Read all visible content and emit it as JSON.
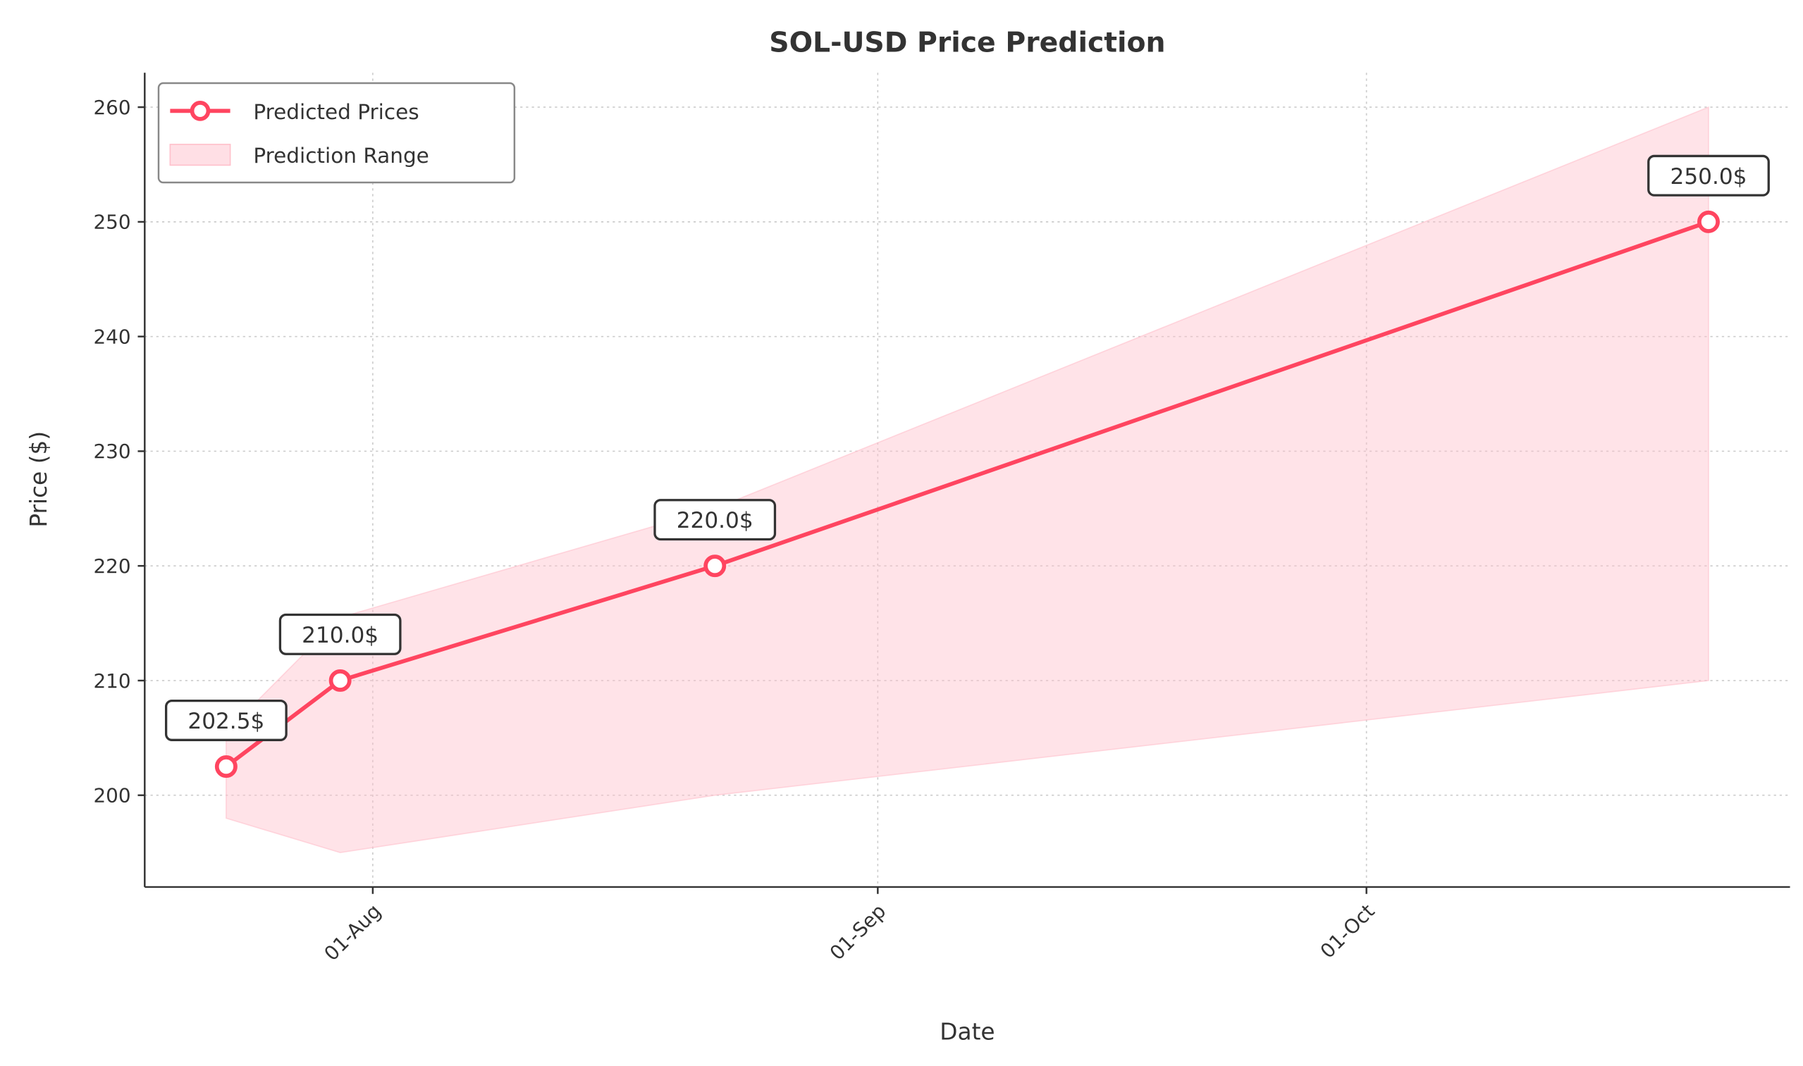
{
  "chart_data": {
    "type": "line",
    "title": "SOL-USD Price Prediction",
    "xlabel": "Date",
    "ylabel": "Price ($)",
    "x": [
      "2024-07-23",
      "2024-07-30",
      "2024-08-22",
      "2024-10-22"
    ],
    "x_tick_labels": [
      {
        "date": "2024-08-01",
        "label": "01-Aug"
      },
      {
        "date": "2024-09-01",
        "label": "01-Sep"
      },
      {
        "date": "2024-10-01",
        "label": "01-Oct"
      }
    ],
    "xlim": [
      "2024-07-18",
      "2024-10-27"
    ],
    "ylim": [
      192,
      263
    ],
    "y_ticks": [
      200,
      210,
      220,
      230,
      240,
      250,
      260
    ],
    "series": [
      {
        "name": "Predicted Prices",
        "values": [
          202.5,
          210.0,
          220.0,
          250.0
        ],
        "color": "#ff4560"
      }
    ],
    "range": {
      "name": "Prediction Range",
      "lower": [
        198,
        195,
        200,
        210
      ],
      "upper": [
        205.5,
        215.5,
        225,
        260
      ],
      "color": "#ffc0cb"
    },
    "data_labels": [
      "202.5$",
      "210.0$",
      "220.0$",
      "250.0$"
    ],
    "grid": true,
    "legend": "top-left"
  }
}
